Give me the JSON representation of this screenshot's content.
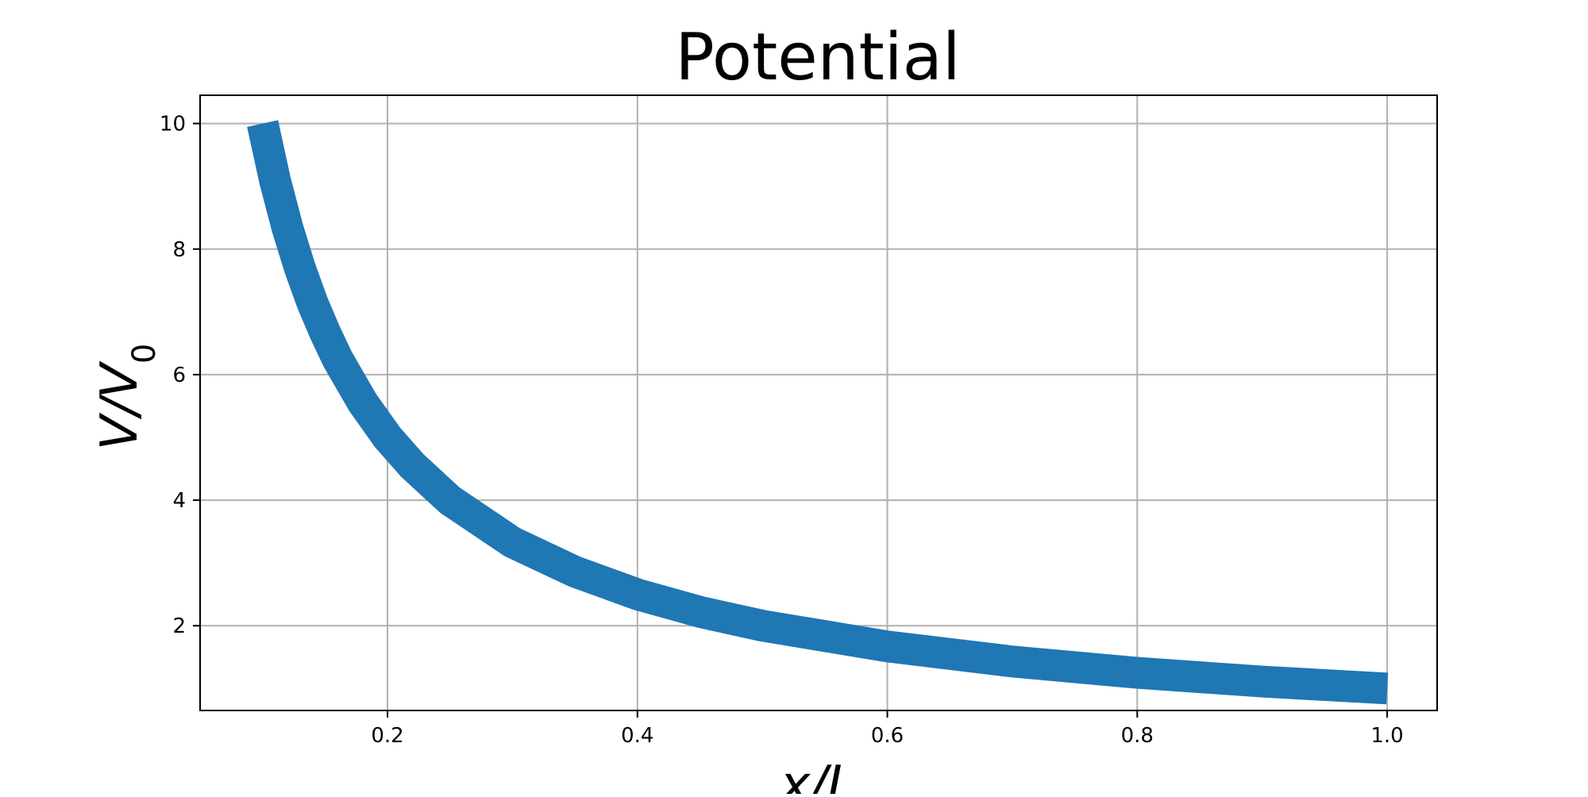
{
  "chart_data": {
    "type": "line",
    "title": "Potential",
    "xlabel": {
      "main": "x/L",
      "sub": ""
    },
    "ylabel": {
      "main": "V/V",
      "sub": "0"
    },
    "xlim": [
      0.05,
      1.04
    ],
    "ylim": [
      0.65,
      10.45
    ],
    "x_ticks": [
      {
        "value": 0.2,
        "label": "0.2"
      },
      {
        "value": 0.4,
        "label": "0.4"
      },
      {
        "value": 0.6,
        "label": "0.6"
      },
      {
        "value": 0.8,
        "label": "0.8"
      },
      {
        "value": 1.0,
        "label": "1.0"
      }
    ],
    "y_ticks": [
      {
        "value": 2,
        "label": "2"
      },
      {
        "value": 4,
        "label": "4"
      },
      {
        "value": 6,
        "label": "6"
      },
      {
        "value": 8,
        "label": "8"
      },
      {
        "value": 10,
        "label": "10"
      }
    ],
    "grid": true,
    "series": [
      {
        "color": "#1f77b4",
        "x": [
          0.1,
          0.11,
          0.12,
          0.13,
          0.14,
          0.15,
          0.16,
          0.18,
          0.2,
          0.22,
          0.25,
          0.3,
          0.35,
          0.4,
          0.45,
          0.5,
          0.6,
          0.7,
          0.8,
          0.9,
          1.0
        ],
        "y": [
          10.0,
          9.09,
          8.33,
          7.69,
          7.14,
          6.67,
          6.25,
          5.56,
          5.0,
          4.55,
          4.0,
          3.33,
          2.86,
          2.5,
          2.22,
          2.0,
          1.67,
          1.43,
          1.25,
          1.11,
          1.0
        ]
      }
    ]
  }
}
